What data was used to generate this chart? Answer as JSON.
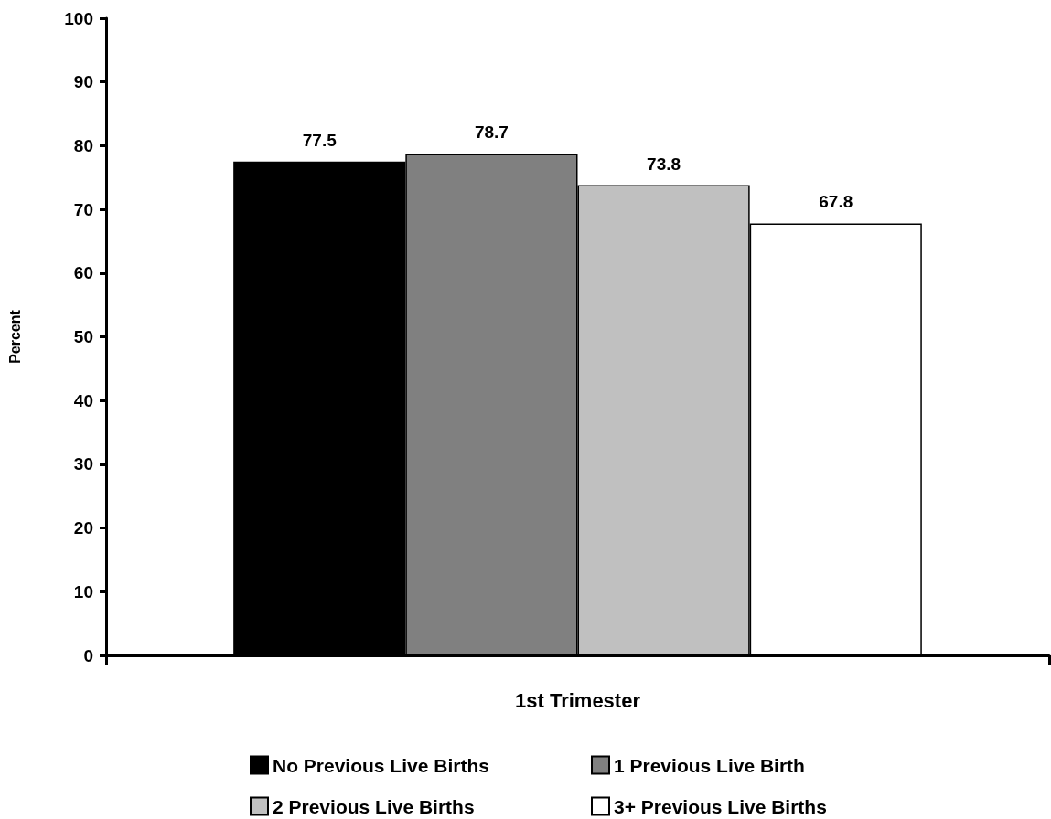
{
  "chart_data": {
    "type": "bar",
    "categories": [
      "1st Trimester"
    ],
    "ylabel": "Percent",
    "series": [
      {
        "name": "No Previous Live Births",
        "color": "#000000",
        "values": [
          77.5
        ]
      },
      {
        "name": "1 Previous Live Birth",
        "color": "#808080",
        "values": [
          78.7
        ]
      },
      {
        "name": "2 Previous Live Births",
        "color": "#c0c0c0",
        "values": [
          73.8
        ]
      },
      {
        "name": "3+ Previous Live Births",
        "color": "#ffffff",
        "values": [
          67.8
        ]
      }
    ],
    "ylim": [
      0,
      100
    ],
    "yticks": [
      0,
      10,
      20,
      30,
      40,
      50,
      60,
      70,
      80,
      90,
      100
    ],
    "legend": "bottom",
    "data_labels": true
  }
}
